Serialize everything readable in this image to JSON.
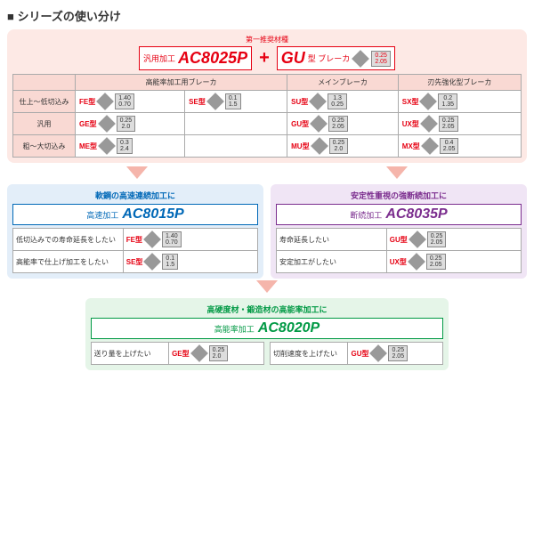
{
  "title": "シリーズの使い分け",
  "top": {
    "rec_label": "第一推奨材種",
    "left_tag": "汎用加工",
    "left_code": "AC8025P",
    "right_tag": "GU",
    "right_suffix": "型 ブレーカ",
    "right_sub": "第一推奨"
  },
  "cols": [
    "",
    "高能率加工用ブレーカ",
    "",
    "メインブレーカ",
    "刃先強化型ブレーカ"
  ],
  "rows": [
    {
      "h": "仕上～低切込み",
      "c": [
        {
          "t": "FE型",
          "n1": "1.40",
          "n2": "0.70"
        },
        {
          "t": "SE型",
          "n1": "0.1",
          "n2": "1.5"
        },
        {
          "t": "SU型",
          "n1": "1.3",
          "n2": "0.25"
        },
        {
          "t": "SX型",
          "n1": "0.2",
          "n2": "1.35"
        }
      ]
    },
    {
      "h": "汎用",
      "c": [
        {
          "t": "GE型",
          "n1": "0.25",
          "n2": "2.0"
        },
        null,
        {
          "t": "GU型",
          "n1": "0.25",
          "n2": "2.05"
        },
        {
          "t": "UX型",
          "n1": "0.25",
          "n2": "2.05"
        }
      ]
    },
    {
      "h": "粗～大切込み",
      "c": [
        {
          "t": "ME型",
          "n1": "0.3",
          "n2": "2.4"
        },
        null,
        {
          "t": "MU型",
          "n1": "0.25",
          "n2": "2.0"
        },
        {
          "t": "MX型",
          "n1": "0.4",
          "n2": "2.05"
        }
      ]
    }
  ],
  "blue": {
    "title": "軟鋼の高速連続加工に",
    "tag": "高速加工",
    "code": "AC8015P",
    "rows": [
      {
        "l": "低切込みでの寿命延長をしたい",
        "t": "FE型",
        "n1": "1.40",
        "n2": "0.70"
      },
      {
        "l": "高能率で仕上げ加工をしたい",
        "t": "SE型",
        "n1": "0.1",
        "n2": "1.5"
      }
    ]
  },
  "purple": {
    "title": "安定性重視の強断続加工に",
    "tag": "断続加工",
    "code": "AC8035P",
    "rows": [
      {
        "l": "寿命延長したい",
        "t": "GU型",
        "n1": "0.25",
        "n2": "2.05"
      },
      {
        "l": "安定加工がしたい",
        "t": "UX型",
        "n1": "0.25",
        "n2": "2.05"
      }
    ]
  },
  "green": {
    "title": "高硬度材・鍛造材の高能率加工に",
    "tag": "高能率加工",
    "code": "AC8020P",
    "rows": [
      {
        "l": "送り量を上げたい",
        "t": "GE型",
        "n1": "0.25",
        "n2": "2.0"
      },
      {
        "l": "切削速度を上げたい",
        "t": "GU型",
        "n1": "0.25",
        "n2": "2.05"
      }
    ]
  }
}
